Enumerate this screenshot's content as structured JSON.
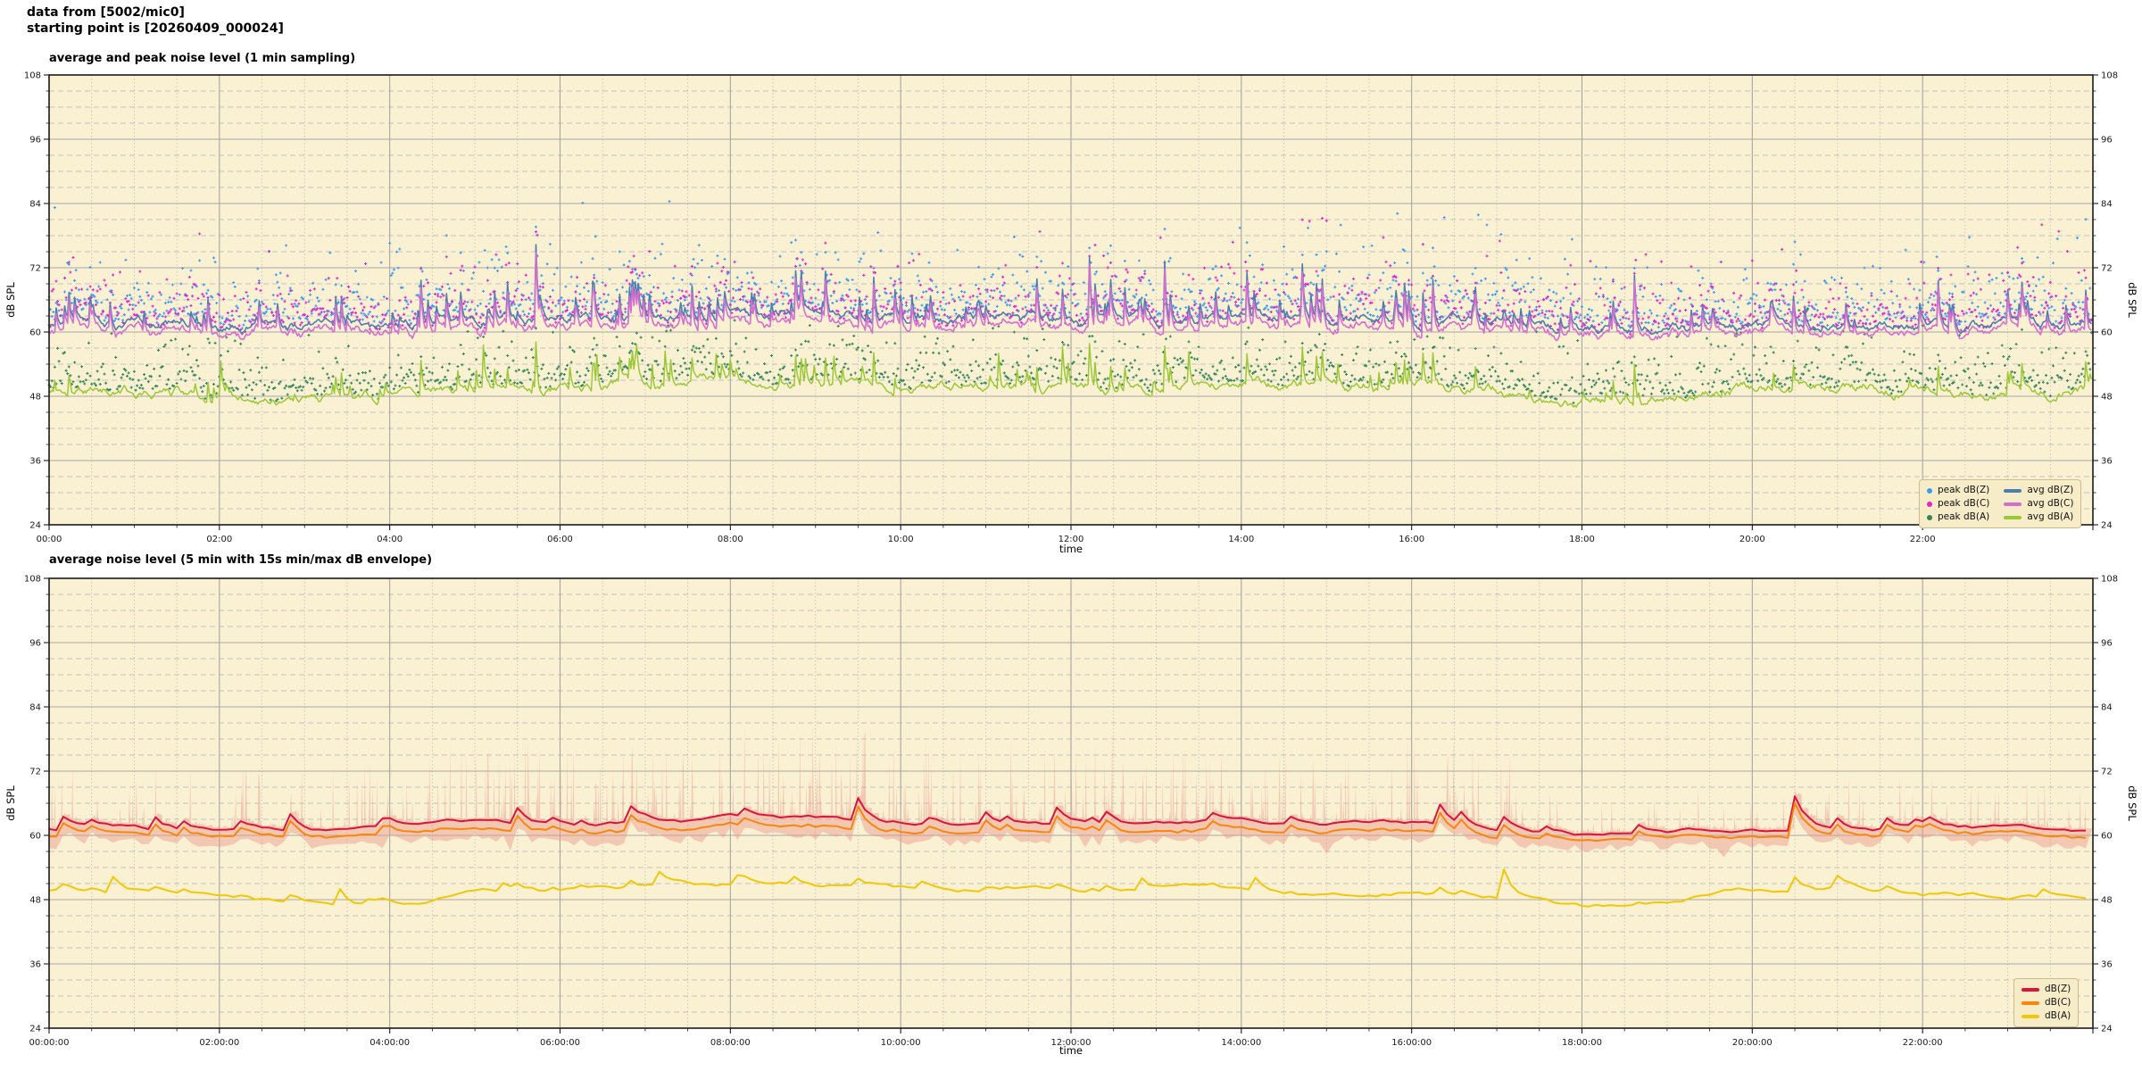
{
  "header": {
    "line1": "data from [5002/mic0]",
    "line2": "starting point is [20260409_000024]"
  },
  "palette": {
    "figure_background": "#ffffff",
    "plot_background": "#faf0d2",
    "grid_major": "#a6a6a6",
    "grid_minor": "#c2c2c2",
    "spine": "#1a1a1a",
    "legend_background": "#f6ecc8",
    "legend_border": "#cbbc90"
  },
  "chart_data": [
    {
      "type": "line+scatter",
      "title": "average and peak noise level (1 min sampling)",
      "xlabel": "time",
      "ylabel_left": "dB SPL",
      "ylabel_right": "dB SPL",
      "ylim": [
        24,
        108
      ],
      "y_major_ticks": [
        24,
        36,
        48,
        60,
        72,
        84,
        96,
        108
      ],
      "y_minor_step_db": 3,
      "x_range_hours": [
        0,
        24
      ],
      "x_major_step_hours": 2,
      "x_minor_step_hours": 0.5,
      "x_tick_labels": [
        "00:00",
        "02:00",
        "04:00",
        "06:00",
        "08:00",
        "10:00",
        "12:00",
        "14:00",
        "16:00",
        "18:00",
        "20:00",
        "22:00"
      ],
      "sample_interval": "1 min",
      "grid": true,
      "legend_location": "lower right",
      "series": [
        {
          "name": "avg dB(Z)",
          "kind": "line",
          "color": "#4d7fae",
          "hourly_level_db": [
            61.3,
            61.1,
            61.0,
            61.0,
            61.6,
            62.3,
            62.2,
            62.6,
            63.0,
            63.1,
            62.6,
            62.3,
            62.1,
            62.3,
            62.5,
            62.2,
            62.4,
            61.9,
            60.6,
            61.0,
            61.5,
            61.6,
            61.5,
            61.4
          ]
        },
        {
          "name": "avg dB(C)",
          "kind": "line",
          "color": "#d46fd0",
          "hourly_level_db": [
            60.2,
            60.0,
            59.9,
            59.9,
            60.5,
            61.1,
            61.0,
            61.4,
            61.7,
            61.8,
            61.4,
            61.1,
            60.9,
            61.1,
            61.3,
            61.0,
            61.2,
            60.7,
            59.5,
            59.9,
            60.4,
            60.5,
            60.4,
            60.3
          ]
        },
        {
          "name": "avg dB(A)",
          "kind": "line",
          "color": "#9cc837",
          "hourly_level_db": [
            49.4,
            48.9,
            48.2,
            47.4,
            47.6,
            49.0,
            49.6,
            50.1,
            50.6,
            50.6,
            50.1,
            49.8,
            49.6,
            49.9,
            50.2,
            49.8,
            50.0,
            49.0,
            46.9,
            48.1,
            49.9,
            50.3,
            49.5,
            48.8
          ]
        }
      ],
      "scatter_series": [
        {
          "name": "peak dB(Z)",
          "kind": "scatter",
          "color": "#3b9bef",
          "db_above_avg_range": [
            1,
            22
          ],
          "observed_range_db": [
            60,
            86
          ]
        },
        {
          "name": "peak dB(C)",
          "kind": "scatter",
          "color": "#e722cc",
          "db_above_avg_range": [
            1,
            20
          ],
          "observed_range_db": [
            59,
            84
          ]
        },
        {
          "name": "peak dB(A)",
          "kind": "scatter",
          "color": "#31865a",
          "db_above_avg_range": [
            1,
            15
          ],
          "observed_range_db": [
            46,
            66
          ]
        }
      ],
      "hourly_spike_activity": [
        0.5,
        0.45,
        0.42,
        0.45,
        0.7,
        0.8,
        0.72,
        0.85,
        0.9,
        0.95,
        0.82,
        0.8,
        0.76,
        0.8,
        0.85,
        0.72,
        0.8,
        0.7,
        0.25,
        0.3,
        0.4,
        0.42,
        0.36,
        0.3
      ],
      "legend": {
        "items": [
          {
            "label": "peak dB(Z)",
            "marker": "dot",
            "color": "#3b9bef"
          },
          {
            "label": "peak dB(C)",
            "marker": "dot",
            "color": "#e722cc"
          },
          {
            "label": "peak dB(A)",
            "marker": "dot",
            "color": "#31865a"
          },
          {
            "label": "avg dB(Z)",
            "marker": "line",
            "color": "#4d7fae"
          },
          {
            "label": "avg dB(C)",
            "marker": "line",
            "color": "#d46fd0"
          },
          {
            "label": "avg dB(A)",
            "marker": "line",
            "color": "#9cc837"
          }
        ]
      }
    },
    {
      "type": "line+band",
      "title": "average noise level (5 min with 15s min/max dB envelope)",
      "xlabel": "time",
      "ylabel_left": "dB SPL",
      "ylabel_right": "dB SPL",
      "ylim": [
        24,
        108
      ],
      "y_major_ticks": [
        24,
        36,
        48,
        60,
        72,
        84,
        96,
        108
      ],
      "y_minor_step_db": 3,
      "x_range_hours": [
        0,
        24
      ],
      "x_major_step_hours": 2,
      "x_minor_step_hours": 0.5,
      "x_tick_labels": [
        "00:00:00",
        "02:00:00",
        "04:00:00",
        "06:00:00",
        "08:00:00",
        "10:00:00",
        "12:00:00",
        "14:00:00",
        "16:00:00",
        "18:00:00",
        "20:00:00",
        "22:00:00"
      ],
      "sample_interval": "5 min",
      "grid": true,
      "legend_location": "lower right",
      "envelope": {
        "name": "15s min/max dB envelope",
        "color": "#e8968c",
        "opacity": 0.45,
        "observed_max_db": 84,
        "observed_min_db": 57
      },
      "series": [
        {
          "name": "dB(Z)",
          "kind": "line",
          "color": "#dc143c",
          "hourly_level_db": [
            61.3,
            61.1,
            61.0,
            61.0,
            61.6,
            62.3,
            62.2,
            62.6,
            63.0,
            63.1,
            62.6,
            62.3,
            62.1,
            62.3,
            62.5,
            62.2,
            62.4,
            61.9,
            60.6,
            61.0,
            61.5,
            61.6,
            61.5,
            61.4
          ]
        },
        {
          "name": "dB(C)",
          "kind": "line",
          "color": "#f8860d",
          "hourly_level_db": [
            60.2,
            60.0,
            59.9,
            59.9,
            60.5,
            61.1,
            61.0,
            61.4,
            61.7,
            61.8,
            61.4,
            61.1,
            60.9,
            61.1,
            61.3,
            61.0,
            61.2,
            60.7,
            59.5,
            59.9,
            60.4,
            60.5,
            60.4,
            60.3
          ]
        },
        {
          "name": "dB(A)",
          "kind": "line",
          "color": "#f0c806",
          "hourly_level_db": [
            49.4,
            48.9,
            48.2,
            47.4,
            47.6,
            49.0,
            49.6,
            50.1,
            50.6,
            50.6,
            50.1,
            49.8,
            49.6,
            49.9,
            50.2,
            49.8,
            50.0,
            49.0,
            46.9,
            48.1,
            49.9,
            50.3,
            49.5,
            48.8
          ]
        }
      ],
      "hourly_spike_activity": [
        0.5,
        0.45,
        0.42,
        0.45,
        0.7,
        0.8,
        0.72,
        0.85,
        0.9,
        0.95,
        0.82,
        0.8,
        0.76,
        0.8,
        0.85,
        0.72,
        0.8,
        0.7,
        0.25,
        0.3,
        0.4,
        0.42,
        0.36,
        0.3
      ],
      "legend": {
        "items": [
          {
            "label": "dB(Z)",
            "marker": "line",
            "color": "#dc143c"
          },
          {
            "label": "dB(C)",
            "marker": "line",
            "color": "#f8860d"
          },
          {
            "label": "dB(A)",
            "marker": "line",
            "color": "#f0c806"
          }
        ]
      }
    }
  ]
}
